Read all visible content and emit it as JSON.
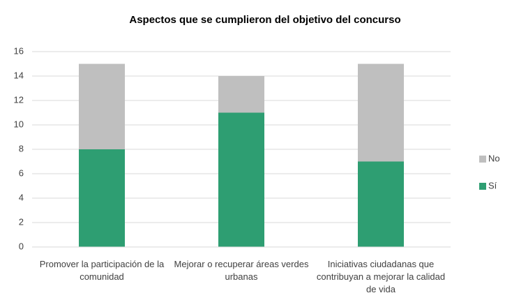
{
  "chart_data": {
    "type": "stacked_bar",
    "title": "Aspectos que se cumplieron del objetivo del concurso",
    "categories": [
      "Promover la participación de la comunidad",
      "Mejorar o recuperar áreas verdes urbanas",
      "Iniciativas ciudadanas que contribuyan a mejorar la calidad de vida"
    ],
    "series": [
      {
        "name": "Sí",
        "color": "#2e9e72",
        "values": [
          8,
          11,
          7
        ]
      },
      {
        "name": "No",
        "color": "#bfbfbf",
        "values": [
          7,
          3,
          8
        ]
      }
    ],
    "ylim": [
      0,
      16
    ],
    "yticks": [
      0,
      2,
      4,
      6,
      8,
      10,
      12,
      14,
      16
    ],
    "grid": true,
    "legend": "right"
  }
}
